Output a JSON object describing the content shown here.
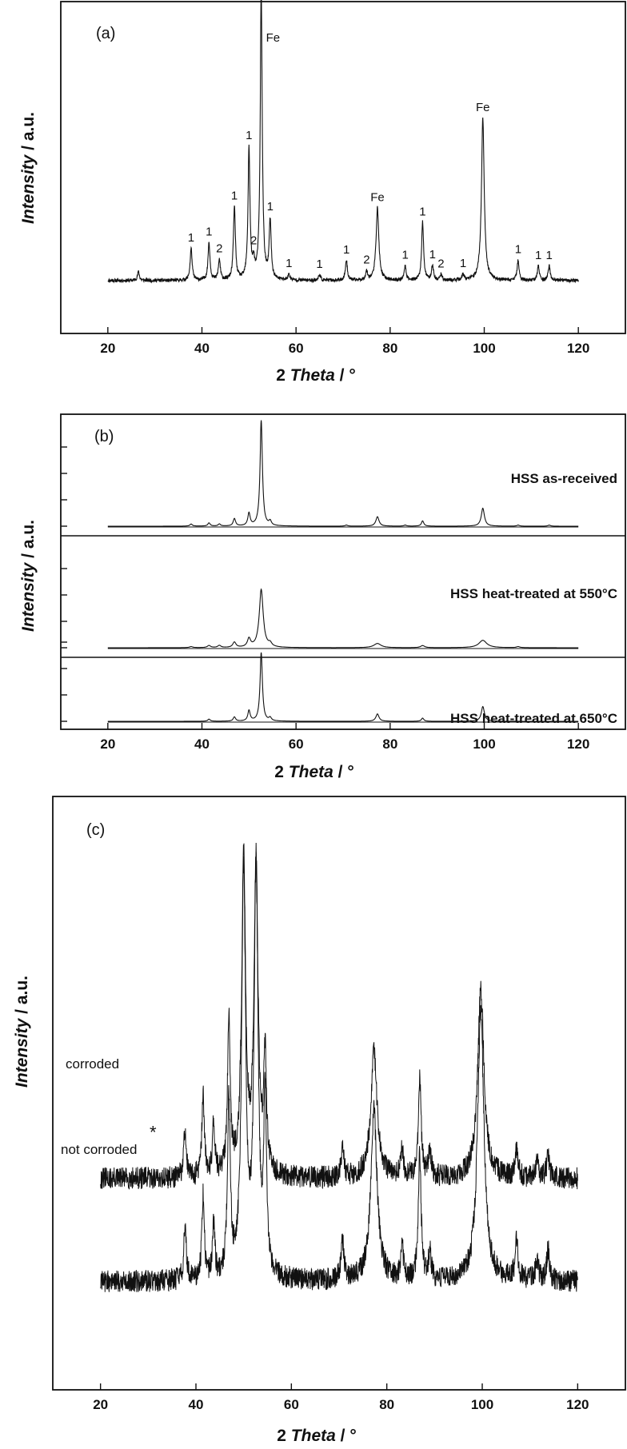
{
  "chart_data": [
    {
      "type": "line",
      "panel": "(a)",
      "xlabel_prefix": "2 ",
      "xlabel_em": "Theta",
      "xlabel_suffix": " / °",
      "ylabel_em": "Intensity",
      "ylabel_suffix": " / a.u.",
      "xlim": [
        10,
        130
      ],
      "xticks": [
        20,
        40,
        60,
        80,
        100,
        120
      ],
      "ylim": [
        0,
        100
      ],
      "yticks": [],
      "baseline": 5,
      "noise": 0.6,
      "x_range": [
        20,
        120
      ],
      "peaks": [
        {
          "x": 26.5,
          "h": 3,
          "w": 0.25
        },
        {
          "x": 37.7,
          "h": 11,
          "w": 0.25,
          "label": "1"
        },
        {
          "x": 41.5,
          "h": 13,
          "w": 0.25,
          "label": "1"
        },
        {
          "x": 43.7,
          "h": 7,
          "w": 0.25,
          "label": "2"
        },
        {
          "x": 46.9,
          "h": 25,
          "w": 0.25,
          "label": "1"
        },
        {
          "x": 50.0,
          "h": 45,
          "w": 0.25,
          "label": "1"
        },
        {
          "x": 51.0,
          "h": 5,
          "w": 0.25,
          "label": "2"
        },
        {
          "x": 52.6,
          "h": 100,
          "w": 0.25,
          "label": "Fe"
        },
        {
          "x": 54.5,
          "h": 20,
          "w": 0.25,
          "label": "1"
        },
        {
          "x": 58.5,
          "h": 2,
          "w": 0.25,
          "label": "1"
        },
        {
          "x": 65.0,
          "h": 2,
          "w": 0.25,
          "label": "1"
        },
        {
          "x": 70.7,
          "h": 7,
          "w": 0.25,
          "label": "1"
        },
        {
          "x": 75.0,
          "h": 3,
          "w": 0.25,
          "label": "2"
        },
        {
          "x": 77.3,
          "h": 25,
          "w": 0.35,
          "label": "Fe"
        },
        {
          "x": 83.2,
          "h": 5,
          "w": 0.25,
          "label": "1"
        },
        {
          "x": 86.9,
          "h": 20,
          "w": 0.25,
          "label": "1"
        },
        {
          "x": 89.0,
          "h": 5,
          "w": 0.25,
          "label": "1"
        },
        {
          "x": 90.8,
          "h": 2,
          "w": 0.25,
          "label": "2"
        },
        {
          "x": 95.5,
          "h": 2,
          "w": 0.25,
          "label": "1"
        },
        {
          "x": 99.7,
          "h": 56,
          "w": 0.35,
          "label": "Fe"
        },
        {
          "x": 107.2,
          "h": 7,
          "w": 0.25,
          "label": "1"
        },
        {
          "x": 111.5,
          "h": 5,
          "w": 0.25,
          "label": "1"
        },
        {
          "x": 113.8,
          "h": 5,
          "w": 0.25,
          "label": "1"
        }
      ]
    },
    {
      "type": "line",
      "panel": "(b)",
      "xlabel_prefix": "2 ",
      "xlabel_em": "Theta",
      "xlabel_suffix": " / °",
      "ylabel_em": "Intensity",
      "ylabel_suffix": " / a.u.",
      "xlim": [
        10,
        130
      ],
      "xticks": [
        20,
        40,
        60,
        80,
        100,
        120
      ],
      "subplots": [
        {
          "name": "HSS as-received",
          "ylim": [
            0,
            100
          ],
          "yticks": [
            0,
            25,
            50,
            75
          ],
          "baseline": 0,
          "x_range": [
            20,
            120
          ],
          "peaks": [
            {
              "x": 37.7,
              "h": 2,
              "w": 0.3
            },
            {
              "x": 41.5,
              "h": 3,
              "w": 0.3
            },
            {
              "x": 43.7,
              "h": 2,
              "w": 0.3
            },
            {
              "x": 46.9,
              "h": 7,
              "w": 0.3
            },
            {
              "x": 50.0,
              "h": 12,
              "w": 0.3
            },
            {
              "x": 52.6,
              "h": 100,
              "w": 0.3
            },
            {
              "x": 54.5,
              "h": 4,
              "w": 0.3
            },
            {
              "x": 70.7,
              "h": 1,
              "w": 0.3
            },
            {
              "x": 77.3,
              "h": 9,
              "w": 0.4
            },
            {
              "x": 83.2,
              "h": 1,
              "w": 0.3
            },
            {
              "x": 86.9,
              "h": 5,
              "w": 0.3
            },
            {
              "x": 99.7,
              "h": 17,
              "w": 0.4
            },
            {
              "x": 107.2,
              "h": 1,
              "w": 0.3
            },
            {
              "x": 113.8,
              "h": 1,
              "w": 0.3
            }
          ]
        },
        {
          "name": "HSS heat-treated at 550°C",
          "ylim": [
            0,
            100
          ],
          "yticks": [
            0,
            25,
            50,
            75
          ],
          "baseline": 0,
          "x_range": [
            20,
            120
          ],
          "peaks": [
            {
              "x": 37.7,
              "h": 1,
              "w": 0.4
            },
            {
              "x": 41.5,
              "h": 2,
              "w": 0.4
            },
            {
              "x": 43.7,
              "h": 2,
              "w": 0.4
            },
            {
              "x": 46.9,
              "h": 5,
              "w": 0.4
            },
            {
              "x": 50.0,
              "h": 8,
              "w": 0.4
            },
            {
              "x": 52.6,
              "h": 55,
              "w": 0.5
            },
            {
              "x": 54.5,
              "h": 3,
              "w": 0.4
            },
            {
              "x": 77.3,
              "h": 4,
              "w": 0.9
            },
            {
              "x": 86.9,
              "h": 2,
              "w": 0.5
            },
            {
              "x": 99.7,
              "h": 7,
              "w": 1.0
            },
            {
              "x": 107.2,
              "h": 1,
              "w": 0.4
            }
          ]
        },
        {
          "name": "HSS heat-treated at 650°C",
          "ylim": [
            0,
            100
          ],
          "yticks": [
            0,
            25,
            50,
            75
          ],
          "baseline": 0,
          "x_range": [
            20,
            120
          ],
          "peaks": [
            {
              "x": 41.5,
              "h": 2,
              "w": 0.3
            },
            {
              "x": 46.9,
              "h": 4,
              "w": 0.3
            },
            {
              "x": 50.0,
              "h": 10,
              "w": 0.3
            },
            {
              "x": 52.6,
              "h": 65,
              "w": 0.3
            },
            {
              "x": 54.5,
              "h": 3,
              "w": 0.3
            },
            {
              "x": 77.3,
              "h": 7,
              "w": 0.4
            },
            {
              "x": 86.9,
              "h": 3,
              "w": 0.3
            },
            {
              "x": 99.7,
              "h": 14,
              "w": 0.4
            }
          ]
        }
      ]
    },
    {
      "type": "line",
      "panel": "(c)",
      "xlabel_prefix": "2 ",
      "xlabel_em": "Theta",
      "xlabel_suffix": " / °",
      "ylabel_em": "Intensity",
      "ylabel_suffix": " / a.u.",
      "xlim": [
        10,
        130
      ],
      "xticks": [
        20,
        40,
        60,
        80,
        100,
        120
      ],
      "ylim": [
        0,
        100
      ],
      "yticks": [],
      "asterisk": {
        "text": "*",
        "x": 31,
        "y": 49
      },
      "series": [
        {
          "name": "corroded",
          "baseline": 40,
          "noise": 2.5,
          "x_range": [
            20,
            120
          ],
          "peaks": [
            {
              "x": 37.7,
              "h": 11,
              "w": 0.3
            },
            {
              "x": 41.5,
              "h": 19,
              "w": 0.3
            },
            {
              "x": 43.7,
              "h": 12,
              "w": 0.3
            },
            {
              "x": 46.9,
              "h": 35,
              "w": 0.35
            },
            {
              "x": 50.0,
              "h": 70,
              "w": 0.5
            },
            {
              "x": 52.6,
              "h": 70,
              "w": 0.5
            },
            {
              "x": 54.5,
              "h": 26,
              "w": 0.35
            },
            {
              "x": 70.7,
              "h": 7,
              "w": 0.35
            },
            {
              "x": 77.3,
              "h": 28,
              "w": 0.8
            },
            {
              "x": 83.2,
              "h": 6,
              "w": 0.35
            },
            {
              "x": 86.9,
              "h": 22,
              "w": 0.35
            },
            {
              "x": 89.0,
              "h": 6,
              "w": 0.35
            },
            {
              "x": 99.7,
              "h": 42,
              "w": 0.8
            },
            {
              "x": 107.2,
              "h": 7,
              "w": 0.35
            },
            {
              "x": 111.5,
              "h": 4,
              "w": 0.35
            },
            {
              "x": 113.8,
              "h": 5,
              "w": 0.35
            }
          ]
        },
        {
          "name": "not corroded",
          "baseline": 17,
          "noise": 2.5,
          "x_range": [
            20,
            120
          ],
          "peaks": [
            {
              "x": 37.7,
              "h": 12,
              "w": 0.3
            },
            {
              "x": 41.5,
              "h": 19,
              "w": 0.3
            },
            {
              "x": 43.7,
              "h": 12,
              "w": 0.3
            },
            {
              "x": 46.9,
              "h": 40,
              "w": 0.35
            },
            {
              "x": 50.0,
              "h": 90,
              "w": 0.5
            },
            {
              "x": 52.6,
              "h": 90,
              "w": 0.5
            },
            {
              "x": 54.5,
              "h": 40,
              "w": 0.35
            },
            {
              "x": 70.7,
              "h": 9,
              "w": 0.35
            },
            {
              "x": 77.3,
              "h": 38,
              "w": 0.8
            },
            {
              "x": 83.2,
              "h": 7,
              "w": 0.35
            },
            {
              "x": 86.9,
              "h": 28,
              "w": 0.35
            },
            {
              "x": 89.0,
              "h": 6,
              "w": 0.35
            },
            {
              "x": 99.7,
              "h": 60,
              "w": 0.8
            },
            {
              "x": 107.2,
              "h": 9,
              "w": 0.35
            },
            {
              "x": 111.5,
              "h": 5,
              "w": 0.35
            },
            {
              "x": 113.8,
              "h": 7,
              "w": 0.35
            }
          ]
        }
      ]
    }
  ]
}
